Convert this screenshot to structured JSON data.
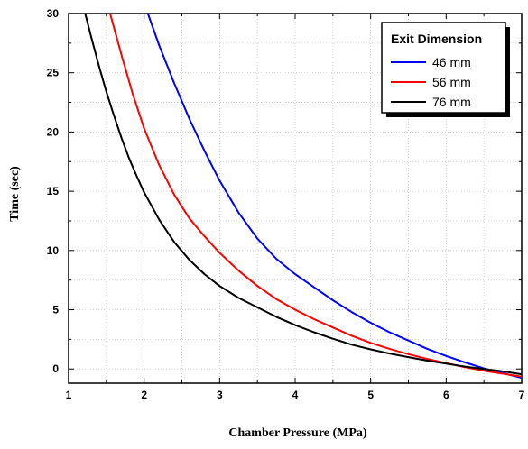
{
  "chart_data": {
    "type": "line",
    "xlabel": "Chamber Pressure (MPa)",
    "ylabel": "Time (sec)",
    "xlim": [
      1,
      7
    ],
    "ylim": [
      -1.2,
      30
    ],
    "xticks": [
      1,
      2,
      3,
      4,
      5,
      6,
      7
    ],
    "yticks": [
      0,
      5,
      10,
      15,
      20,
      25,
      30
    ],
    "grid": true,
    "legend": {
      "title": "Exit Dimension",
      "placement": "top-right"
    },
    "series": [
      {
        "name": "46 mm",
        "color": "#0000ff",
        "x": [
          2.05,
          2.2,
          2.4,
          2.6,
          2.8,
          3.0,
          3.25,
          3.5,
          3.75,
          4.0,
          4.25,
          4.5,
          4.75,
          5.0,
          5.25,
          5.5,
          5.75,
          6.0,
          6.25,
          6.5,
          6.75,
          7.0
        ],
        "y": [
          30.0,
          27.3,
          24.1,
          21.1,
          18.4,
          15.9,
          13.2,
          11.0,
          9.3,
          8.0,
          6.9,
          5.8,
          4.8,
          3.9,
          3.1,
          2.4,
          1.7,
          1.1,
          0.55,
          0.05,
          -0.35,
          -0.75
        ]
      },
      {
        "name": "56 mm",
        "color": "#ff0000",
        "x": [
          1.55,
          1.7,
          1.85,
          2.0,
          2.2,
          2.4,
          2.6,
          2.8,
          3.0,
          3.25,
          3.5,
          3.75,
          4.0,
          4.25,
          4.5,
          4.75,
          5.0,
          5.25,
          5.5,
          5.75,
          6.0,
          6.25,
          6.5,
          6.75,
          7.0
        ],
        "y": [
          30.0,
          26.5,
          23.2,
          20.3,
          17.2,
          14.7,
          12.7,
          11.2,
          9.8,
          8.3,
          7.0,
          5.9,
          5.0,
          4.2,
          3.5,
          2.8,
          2.2,
          1.7,
          1.25,
          0.85,
          0.5,
          0.15,
          -0.15,
          -0.4,
          -0.65
        ]
      },
      {
        "name": "76 mm",
        "color": "#000000",
        "x": [
          1.22,
          1.3,
          1.4,
          1.5,
          1.6,
          1.7,
          1.8,
          1.9,
          2.0,
          2.2,
          2.4,
          2.6,
          2.8,
          3.0,
          3.25,
          3.5,
          3.75,
          4.0,
          4.25,
          4.5,
          4.75,
          5.0,
          5.25,
          5.5,
          5.75,
          6.0,
          6.25,
          6.5,
          6.75,
          7.0
        ],
        "y": [
          30.0,
          28.0,
          25.6,
          23.4,
          21.4,
          19.5,
          17.8,
          16.3,
          14.9,
          12.6,
          10.7,
          9.2,
          8.0,
          7.0,
          6.0,
          5.2,
          4.4,
          3.7,
          3.1,
          2.55,
          2.05,
          1.65,
          1.3,
          1.0,
          0.7,
          0.45,
          0.2,
          0.0,
          -0.2,
          -0.45
        ]
      }
    ]
  }
}
